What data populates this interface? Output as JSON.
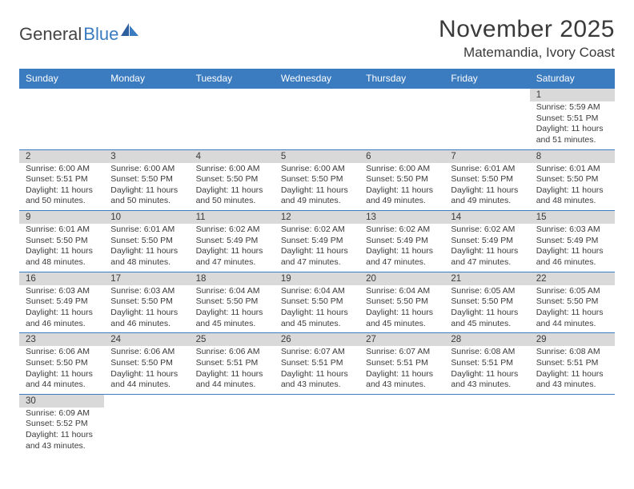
{
  "logo": {
    "general": "General",
    "blue": "Blue"
  },
  "title": {
    "month": "November 2025",
    "location": "Matemandia, Ivory Coast"
  },
  "colors": {
    "header_bg": "#3b7bbf",
    "header_fg": "#ffffff",
    "daynum_bg": "#d9d9d9",
    "text": "#3a3a3a",
    "rule": "#3b7bbf",
    "background": "#ffffff"
  },
  "days_of_week": [
    "Sunday",
    "Monday",
    "Tuesday",
    "Wednesday",
    "Thursday",
    "Friday",
    "Saturday"
  ],
  "weeks": [
    {
      "nums": [
        "",
        "",
        "",
        "",
        "",
        "",
        "1"
      ],
      "cells": [
        "",
        "",
        "",
        "",
        "",
        "",
        "Sunrise: 5:59 AM\nSunset: 5:51 PM\nDaylight: 11 hours and 51 minutes."
      ]
    },
    {
      "nums": [
        "2",
        "3",
        "4",
        "5",
        "6",
        "7",
        "8"
      ],
      "cells": [
        "Sunrise: 6:00 AM\nSunset: 5:51 PM\nDaylight: 11 hours and 50 minutes.",
        "Sunrise: 6:00 AM\nSunset: 5:50 PM\nDaylight: 11 hours and 50 minutes.",
        "Sunrise: 6:00 AM\nSunset: 5:50 PM\nDaylight: 11 hours and 50 minutes.",
        "Sunrise: 6:00 AM\nSunset: 5:50 PM\nDaylight: 11 hours and 49 minutes.",
        "Sunrise: 6:00 AM\nSunset: 5:50 PM\nDaylight: 11 hours and 49 minutes.",
        "Sunrise: 6:01 AM\nSunset: 5:50 PM\nDaylight: 11 hours and 49 minutes.",
        "Sunrise: 6:01 AM\nSunset: 5:50 PM\nDaylight: 11 hours and 48 minutes."
      ]
    },
    {
      "nums": [
        "9",
        "10",
        "11",
        "12",
        "13",
        "14",
        "15"
      ],
      "cells": [
        "Sunrise: 6:01 AM\nSunset: 5:50 PM\nDaylight: 11 hours and 48 minutes.",
        "Sunrise: 6:01 AM\nSunset: 5:50 PM\nDaylight: 11 hours and 48 minutes.",
        "Sunrise: 6:02 AM\nSunset: 5:49 PM\nDaylight: 11 hours and 47 minutes.",
        "Sunrise: 6:02 AM\nSunset: 5:49 PM\nDaylight: 11 hours and 47 minutes.",
        "Sunrise: 6:02 AM\nSunset: 5:49 PM\nDaylight: 11 hours and 47 minutes.",
        "Sunrise: 6:02 AM\nSunset: 5:49 PM\nDaylight: 11 hours and 47 minutes.",
        "Sunrise: 6:03 AM\nSunset: 5:49 PM\nDaylight: 11 hours and 46 minutes."
      ]
    },
    {
      "nums": [
        "16",
        "17",
        "18",
        "19",
        "20",
        "21",
        "22"
      ],
      "cells": [
        "Sunrise: 6:03 AM\nSunset: 5:49 PM\nDaylight: 11 hours and 46 minutes.",
        "Sunrise: 6:03 AM\nSunset: 5:50 PM\nDaylight: 11 hours and 46 minutes.",
        "Sunrise: 6:04 AM\nSunset: 5:50 PM\nDaylight: 11 hours and 45 minutes.",
        "Sunrise: 6:04 AM\nSunset: 5:50 PM\nDaylight: 11 hours and 45 minutes.",
        "Sunrise: 6:04 AM\nSunset: 5:50 PM\nDaylight: 11 hours and 45 minutes.",
        "Sunrise: 6:05 AM\nSunset: 5:50 PM\nDaylight: 11 hours and 45 minutes.",
        "Sunrise: 6:05 AM\nSunset: 5:50 PM\nDaylight: 11 hours and 44 minutes."
      ]
    },
    {
      "nums": [
        "23",
        "24",
        "25",
        "26",
        "27",
        "28",
        "29"
      ],
      "cells": [
        "Sunrise: 6:06 AM\nSunset: 5:50 PM\nDaylight: 11 hours and 44 minutes.",
        "Sunrise: 6:06 AM\nSunset: 5:50 PM\nDaylight: 11 hours and 44 minutes.",
        "Sunrise: 6:06 AM\nSunset: 5:51 PM\nDaylight: 11 hours and 44 minutes.",
        "Sunrise: 6:07 AM\nSunset: 5:51 PM\nDaylight: 11 hours and 43 minutes.",
        "Sunrise: 6:07 AM\nSunset: 5:51 PM\nDaylight: 11 hours and 43 minutes.",
        "Sunrise: 6:08 AM\nSunset: 5:51 PM\nDaylight: 11 hours and 43 minutes.",
        "Sunrise: 6:08 AM\nSunset: 5:51 PM\nDaylight: 11 hours and 43 minutes."
      ]
    },
    {
      "nums": [
        "30",
        "",
        "",
        "",
        "",
        "",
        ""
      ],
      "cells": [
        "Sunrise: 6:09 AM\nSunset: 5:52 PM\nDaylight: 11 hours and 43 minutes.",
        "",
        "",
        "",
        "",
        "",
        ""
      ]
    }
  ]
}
